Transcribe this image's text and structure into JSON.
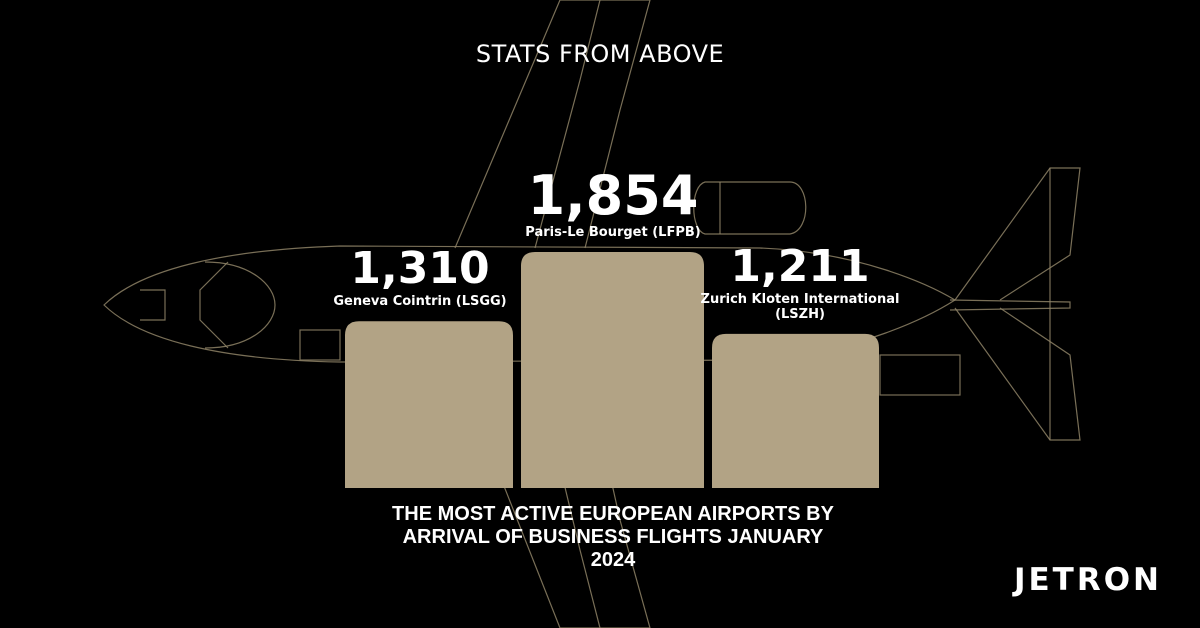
{
  "header": {
    "kicker": "STATS FROM ABOVE"
  },
  "chart_data": {
    "type": "bar",
    "title": "THE MOST ACTIVE EUROPEAN AIRPORTS BY ARRIVAL OF BUSINESS FLIGHTS JANUARY 2024",
    "categories": [
      "Geneva Cointrin (LSGG)",
      "Paris-Le Bourget (LFPB)",
      "Zurich Kloten International (LSZH)"
    ],
    "category_lines": [
      [
        "Geneva Cointrin (LSGG)"
      ],
      [
        "Paris-Le Bourget (LFPB)"
      ],
      [
        "Zurich Kloten International",
        "(LSZH)"
      ]
    ],
    "values": [
      1310,
      1854,
      1211
    ],
    "value_labels": [
      "1,310",
      "1,854",
      "1,211"
    ],
    "xlabel": "",
    "ylabel": "",
    "ylim": [
      0,
      1854
    ],
    "grid": false,
    "legend": "none",
    "bar_color": "#b2a385"
  },
  "caption": {
    "line1": "THE MOST ACTIVE EUROPEAN AIRPORTS BY",
    "line2": "ARRIVAL OF BUSINESS FLIGHTS JANUARY",
    "line3": "2024"
  },
  "brand": {
    "logo_text": "JETRON"
  },
  "colors": {
    "background": "#000000",
    "bar": "#b2a385",
    "outline": "#8e8266",
    "text": "#ffffff"
  }
}
